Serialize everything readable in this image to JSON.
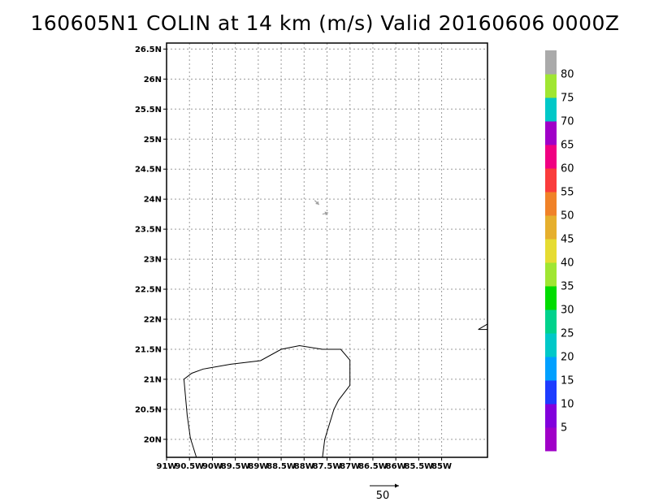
{
  "title": "160605N1 COLIN at 14 km (m/s) Valid 20160606 0000Z",
  "map": {
    "lon_range": [
      -91.0,
      -84.0
    ],
    "lat_range": [
      19.7,
      26.6
    ],
    "lon_ticks": [
      {
        "value": -91.0,
        "label": "91W"
      },
      {
        "value": -90.5,
        "label": "90.5W"
      },
      {
        "value": -90.0,
        "label": "90W"
      },
      {
        "value": -89.5,
        "label": "89.5W"
      },
      {
        "value": -89.0,
        "label": "89W"
      },
      {
        "value": -88.5,
        "label": "88.5W"
      },
      {
        "value": -88.0,
        "label": "88W"
      },
      {
        "value": -87.5,
        "label": "87.5W"
      },
      {
        "value": -87.0,
        "label": "87W"
      },
      {
        "value": -86.5,
        "label": "86.5W"
      },
      {
        "value": -86.0,
        "label": "86W"
      },
      {
        "value": -85.5,
        "label": "85.5W"
      },
      {
        "value": -85.0,
        "label": "85W"
      }
    ],
    "lat_ticks": [
      {
        "value": 26.5,
        "label": "26.5N"
      },
      {
        "value": 26.0,
        "label": "26N"
      },
      {
        "value": 25.5,
        "label": "25.5N"
      },
      {
        "value": 25.0,
        "label": "25N"
      },
      {
        "value": 24.5,
        "label": "24.5N"
      },
      {
        "value": 24.0,
        "label": "24N"
      },
      {
        "value": 23.5,
        "label": "23.5N"
      },
      {
        "value": 23.0,
        "label": "23N"
      },
      {
        "value": 22.5,
        "label": "22.5N"
      },
      {
        "value": 22.0,
        "label": "22N"
      },
      {
        "value": 21.5,
        "label": "21.5N"
      },
      {
        "value": 21.0,
        "label": "21N"
      },
      {
        "value": 20.5,
        "label": "20.5N"
      },
      {
        "value": 20.0,
        "label": "20N"
      }
    ],
    "grid": "dotted",
    "coastlines": [
      [
        [
          -90.35,
          19.7
        ],
        [
          -90.48,
          20.02
        ],
        [
          -90.55,
          20.4
        ],
        [
          -90.62,
          21.0
        ],
        [
          -90.45,
          21.1
        ],
        [
          -90.2,
          21.17
        ],
        [
          -89.6,
          21.25
        ],
        [
          -88.95,
          21.31
        ],
        [
          -88.5,
          21.5
        ],
        [
          -88.1,
          21.56
        ],
        [
          -87.6,
          21.5
        ],
        [
          -87.2,
          21.5
        ],
        [
          -87.0,
          21.32
        ],
        [
          -87.0,
          20.9
        ],
        [
          -87.25,
          20.65
        ],
        [
          -87.35,
          20.5
        ],
        [
          -87.55,
          20.0
        ],
        [
          -87.6,
          19.7
        ]
      ],
      [
        [
          -84.2,
          21.83
        ],
        [
          -84.0,
          21.83
        ]
      ],
      [
        [
          -84.2,
          21.83
        ],
        [
          -84.0,
          21.92
        ]
      ]
    ],
    "wind_vectors": [
      {
        "lon": -87.77,
        "lat": 23.98,
        "u": 0.6,
        "v": -0.6,
        "color": "#a0a0a0"
      },
      {
        "lon": -87.6,
        "lat": 23.75,
        "u": 0.8,
        "v": 0.2,
        "color": "#a0a0a0"
      }
    ],
    "reference_vector": {
      "label": "50"
    }
  },
  "colorbar": {
    "bins": [
      {
        "color": "#a000c8"
      },
      {
        "color": "#8200dc"
      },
      {
        "color": "#1e3cff"
      },
      {
        "color": "#00a0ff"
      },
      {
        "color": "#00c8c8"
      },
      {
        "color": "#00d28c"
      },
      {
        "color": "#00dc00"
      },
      {
        "color": "#a0e632"
      },
      {
        "color": "#e6dc32"
      },
      {
        "color": "#e6af2d"
      },
      {
        "color": "#f08228"
      },
      {
        "color": "#fa3c3c"
      },
      {
        "color": "#f00082"
      },
      {
        "color": "#a000c8"
      },
      {
        "color": "#00c8c8"
      },
      {
        "color": "#a0e632"
      },
      {
        "color": "#aaaaaa"
      }
    ],
    "labels": [
      "5",
      "10",
      "15",
      "20",
      "25",
      "30",
      "35",
      "40",
      "45",
      "50",
      "55",
      "60",
      "65",
      "70",
      "75",
      "80"
    ]
  }
}
